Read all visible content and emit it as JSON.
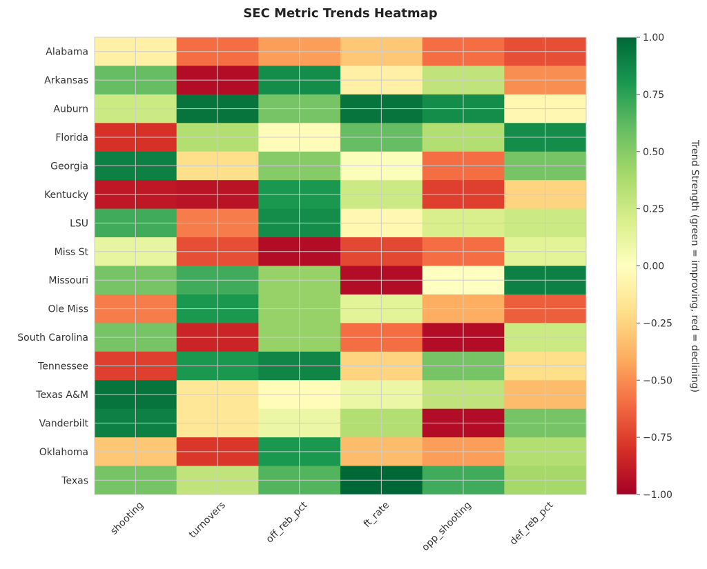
{
  "chart_data": {
    "type": "heatmap",
    "title": "SEC Metric Trends Heatmap",
    "x_labels": [
      "shooting",
      "turnovers",
      "off_reb_pct",
      "ft_rate",
      "opp_shooting",
      "def_reb_pct"
    ],
    "y_labels": [
      "Alabama",
      "Arkansas",
      "Auburn",
      "Florida",
      "Georgia",
      "Kentucky",
      "LSU",
      "Miss St",
      "Missouri",
      "Ole Miss",
      "South Carolina",
      "Tennessee",
      "Texas A&M",
      "Vanderbilt",
      "Oklahoma",
      "Texas"
    ],
    "values": [
      [
        -0.1,
        -0.6,
        -0.45,
        -0.3,
        -0.6,
        -0.7
      ],
      [
        0.6,
        -0.95,
        0.85,
        -0.1,
        0.3,
        -0.5
      ],
      [
        0.25,
        0.95,
        0.55,
        0.95,
        0.85,
        -0.05
      ],
      [
        -0.8,
        0.35,
        -0.02,
        0.6,
        0.35,
        0.85
      ],
      [
        0.9,
        -0.2,
        0.5,
        0.02,
        -0.6,
        0.55
      ],
      [
        -0.9,
        -0.92,
        0.8,
        0.25,
        -0.75,
        -0.25
      ],
      [
        0.7,
        -0.55,
        0.85,
        -0.05,
        0.2,
        0.25
      ],
      [
        0.12,
        -0.7,
        -0.95,
        -0.72,
        -0.6,
        0.15
      ],
      [
        0.55,
        0.7,
        0.45,
        -0.95,
        0.0,
        0.9
      ],
      [
        -0.55,
        0.8,
        0.45,
        0.15,
        -0.4,
        -0.65
      ],
      [
        0.55,
        -0.85,
        0.45,
        -0.6,
        -0.95,
        0.25
      ],
      [
        -0.75,
        0.8,
        0.88,
        -0.25,
        0.55,
        -0.2
      ],
      [
        0.95,
        -0.15,
        -0.02,
        0.1,
        0.3,
        -0.35
      ],
      [
        0.9,
        -0.15,
        0.1,
        0.35,
        -0.95,
        0.55
      ],
      [
        -0.3,
        -0.78,
        0.8,
        -0.35,
        -0.45,
        0.35
      ],
      [
        0.55,
        0.3,
        0.65,
        1.0,
        0.7,
        0.4
      ]
    ],
    "vmin": -1.0,
    "vmax": 1.0,
    "colormap": "RdYlGn",
    "colorbar_ticks": [
      "1.00",
      "0.75",
      "0.50",
      "0.25",
      "0.00",
      "−0.25",
      "−0.50",
      "−0.75",
      "−1.00"
    ],
    "colorbar_label": "Trend Strength (green = improving, red = declining)"
  }
}
